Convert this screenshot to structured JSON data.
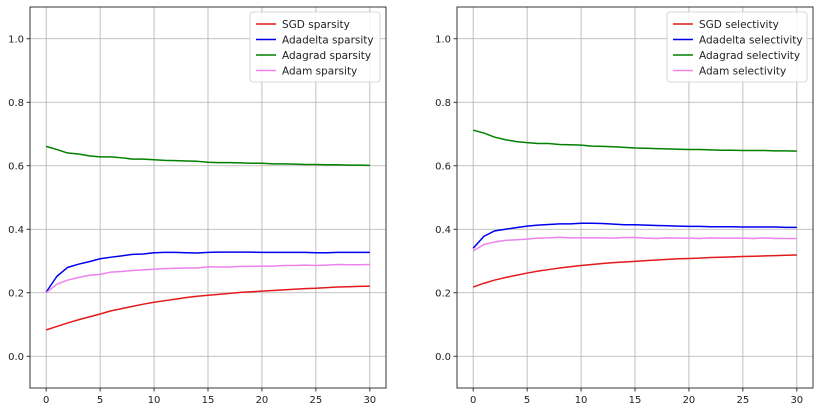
{
  "chart_data": [
    {
      "type": "line",
      "title": "",
      "xlabel": "",
      "ylabel": "",
      "xlim": [
        -1.5,
        31.5
      ],
      "ylim": [
        -0.1,
        1.1
      ],
      "xticks": [
        0,
        5,
        10,
        15,
        20,
        25,
        30
      ],
      "yticks": [
        0.0,
        0.2,
        0.4,
        0.6,
        0.8,
        1.0
      ],
      "xtick_labels": [
        "0",
        "5",
        "10",
        "15",
        "20",
        "25",
        "30"
      ],
      "ytick_labels": [
        "0.0",
        "0.2",
        "0.4",
        "0.6",
        "0.8",
        "1.0"
      ],
      "grid": true,
      "legend_position": "top-right",
      "x": [
        0,
        1,
        2,
        3,
        4,
        5,
        6,
        7,
        8,
        9,
        10,
        11,
        12,
        13,
        14,
        15,
        16,
        17,
        18,
        19,
        20,
        21,
        22,
        23,
        24,
        25,
        26,
        27,
        28,
        29,
        30
      ],
      "series": [
        {
          "name": "SGD sparsity",
          "color": "#e31a1c",
          "values": [
            0.083,
            0.094,
            0.105,
            0.115,
            0.124,
            0.133,
            0.143,
            0.15,
            0.157,
            0.164,
            0.17,
            0.175,
            0.18,
            0.185,
            0.189,
            0.192,
            0.195,
            0.198,
            0.201,
            0.203,
            0.205,
            0.207,
            0.209,
            0.211,
            0.213,
            0.214,
            0.216,
            0.218,
            0.219,
            0.22,
            0.221
          ]
        },
        {
          "name": "Adadelta sparsity",
          "color": "#0000ee",
          "values": [
            0.202,
            0.252,
            0.28,
            0.29,
            0.298,
            0.307,
            0.312,
            0.316,
            0.321,
            0.322,
            0.326,
            0.327,
            0.327,
            0.326,
            0.325,
            0.327,
            0.328,
            0.328,
            0.328,
            0.328,
            0.327,
            0.327,
            0.327,
            0.327,
            0.327,
            0.326,
            0.326,
            0.327,
            0.327,
            0.327,
            0.327
          ]
        },
        {
          "name": "Adagrad sparsity",
          "color": "#008000",
          "values": [
            0.661,
            0.651,
            0.64,
            0.637,
            0.631,
            0.628,
            0.628,
            0.625,
            0.621,
            0.621,
            0.619,
            0.617,
            0.616,
            0.615,
            0.614,
            0.611,
            0.61,
            0.61,
            0.609,
            0.608,
            0.608,
            0.606,
            0.606,
            0.605,
            0.604,
            0.604,
            0.603,
            0.603,
            0.602,
            0.602,
            0.601
          ]
        },
        {
          "name": "Adam sparsity",
          "color": "#ee82ee",
          "values": [
            0.2,
            0.227,
            0.24,
            0.248,
            0.255,
            0.258,
            0.265,
            0.267,
            0.27,
            0.272,
            0.274,
            0.276,
            0.277,
            0.278,
            0.278,
            0.282,
            0.281,
            0.281,
            0.283,
            0.283,
            0.284,
            0.284,
            0.286,
            0.286,
            0.287,
            0.286,
            0.287,
            0.289,
            0.288,
            0.288,
            0.289
          ]
        }
      ]
    },
    {
      "type": "line",
      "title": "",
      "xlabel": "",
      "ylabel": "",
      "xlim": [
        -1.5,
        31.5
      ],
      "ylim": [
        -0.1,
        1.1
      ],
      "xticks": [
        0,
        5,
        10,
        15,
        20,
        25,
        30
      ],
      "yticks": [
        0.0,
        0.2,
        0.4,
        0.6,
        0.8,
        1.0
      ],
      "xtick_labels": [
        "0",
        "5",
        "10",
        "15",
        "20",
        "25",
        "30"
      ],
      "ytick_labels": [
        "0.0",
        "0.2",
        "0.4",
        "0.6",
        "0.8",
        "1.0"
      ],
      "grid": true,
      "legend_position": "top-right",
      "x": [
        0,
        1,
        2,
        3,
        4,
        5,
        6,
        7,
        8,
        9,
        10,
        11,
        12,
        13,
        14,
        15,
        16,
        17,
        18,
        19,
        20,
        21,
        22,
        23,
        24,
        25,
        26,
        27,
        28,
        29,
        30
      ],
      "series": [
        {
          "name": "SGD selectivity",
          "color": "#e31a1c",
          "values": [
            0.218,
            0.23,
            0.24,
            0.248,
            0.255,
            0.262,
            0.268,
            0.273,
            0.278,
            0.282,
            0.286,
            0.289,
            0.292,
            0.295,
            0.297,
            0.299,
            0.301,
            0.303,
            0.305,
            0.307,
            0.308,
            0.309,
            0.311,
            0.312,
            0.313,
            0.314,
            0.315,
            0.316,
            0.317,
            0.318,
            0.319
          ]
        },
        {
          "name": "Adadelta selectivity",
          "color": "#0000ee",
          "values": [
            0.34,
            0.378,
            0.395,
            0.4,
            0.405,
            0.41,
            0.413,
            0.415,
            0.417,
            0.417,
            0.419,
            0.419,
            0.418,
            0.416,
            0.414,
            0.414,
            0.413,
            0.412,
            0.411,
            0.41,
            0.409,
            0.409,
            0.408,
            0.408,
            0.408,
            0.407,
            0.407,
            0.407,
            0.407,
            0.406,
            0.406
          ]
        },
        {
          "name": "Adagrad selectivity",
          "color": "#008000",
          "values": [
            0.712,
            0.703,
            0.69,
            0.682,
            0.676,
            0.673,
            0.67,
            0.67,
            0.667,
            0.666,
            0.665,
            0.662,
            0.661,
            0.66,
            0.658,
            0.656,
            0.655,
            0.654,
            0.653,
            0.652,
            0.651,
            0.651,
            0.65,
            0.649,
            0.649,
            0.648,
            0.648,
            0.648,
            0.647,
            0.647,
            0.646
          ]
        },
        {
          "name": "Adam selectivity",
          "color": "#ee82ee",
          "values": [
            0.332,
            0.352,
            0.36,
            0.365,
            0.367,
            0.369,
            0.372,
            0.373,
            0.375,
            0.373,
            0.373,
            0.373,
            0.373,
            0.372,
            0.374,
            0.374,
            0.372,
            0.371,
            0.373,
            0.372,
            0.372,
            0.371,
            0.373,
            0.372,
            0.372,
            0.372,
            0.371,
            0.373,
            0.371,
            0.371,
            0.371
          ]
        }
      ]
    }
  ]
}
